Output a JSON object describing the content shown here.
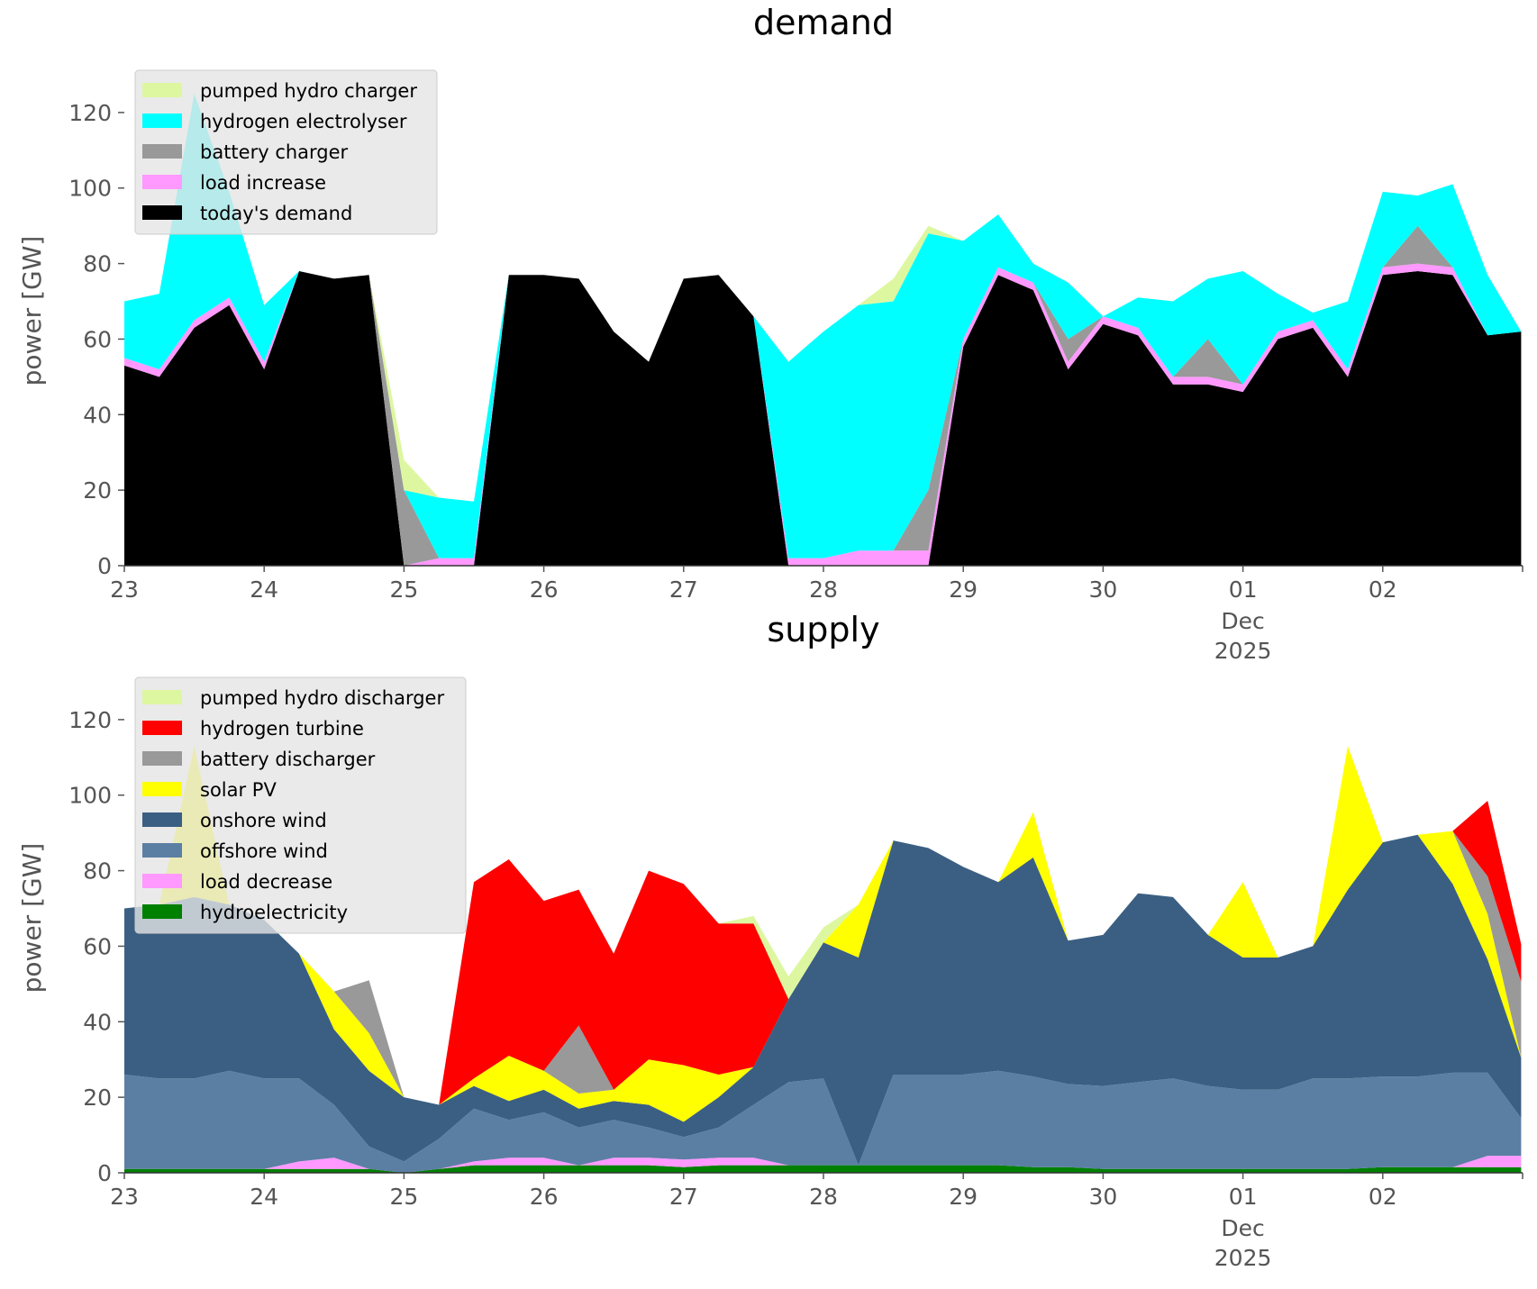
{
  "chart_data": [
    {
      "type": "area",
      "title": "demand",
      "xlabel": "",
      "ylabel": "power [GW]",
      "ylim": [
        0,
        135
      ],
      "yticks": [
        0,
        20,
        40,
        60,
        80,
        100,
        120
      ],
      "xlim": [
        0,
        10
      ],
      "xtick_labels": [
        "23",
        "24",
        "25",
        "26",
        "27",
        "28",
        "29",
        "30",
        "01",
        "02"
      ],
      "xtick_sublabels": {
        "01": [
          "Dec",
          "2025"
        ]
      },
      "legend_position": "top-left",
      "x": [
        0,
        0.25,
        0.5,
        0.75,
        1,
        1.25,
        1.5,
        1.75,
        2,
        2.25,
        2.5,
        2.75,
        3,
        3.25,
        3.5,
        3.75,
        4,
        4.25,
        4.5,
        4.75,
        5,
        5.25,
        5.5,
        5.75,
        6,
        6.25,
        6.5,
        6.75,
        7,
        7.25,
        7.5,
        7.75,
        8,
        8.25,
        8.5,
        8.75,
        9,
        9.25,
        9.5,
        9.75,
        9.99
      ],
      "series": [
        {
          "name": "today's demand",
          "color": "#000000",
          "values": [
            53,
            50,
            63,
            69,
            52,
            78,
            76,
            77,
            0,
            0,
            0,
            77,
            77,
            76,
            62,
            54,
            76,
            77,
            66,
            0,
            0,
            0,
            0,
            0,
            58,
            77,
            73,
            52,
            64,
            61,
            48,
            48,
            46,
            60,
            63,
            50,
            77,
            78,
            77,
            61,
            62
          ]
        },
        {
          "name": "load increase",
          "color": "#ff99ff",
          "values": [
            2,
            2,
            2,
            2,
            2,
            0,
            0,
            0,
            0,
            2,
            2,
            0,
            0,
            0,
            0,
            0,
            0,
            0,
            0,
            2,
            2,
            4,
            4,
            4,
            2,
            2,
            2,
            2,
            2,
            2,
            2,
            2,
            2,
            2,
            2,
            2,
            2,
            2,
            2,
            0,
            0
          ]
        },
        {
          "name": "battery charger",
          "color": "#999999",
          "values": [
            0,
            0,
            0,
            0,
            0,
            0,
            0,
            0,
            20,
            0,
            0,
            0,
            0,
            0,
            0,
            0,
            0,
            0,
            0,
            0,
            0,
            0,
            0,
            16,
            0,
            0,
            0,
            6,
            0,
            0,
            0,
            10,
            0,
            0,
            0,
            0,
            0,
            10,
            0,
            0,
            0
          ]
        },
        {
          "name": "hydrogen electrolyser",
          "color": "#00ffff",
          "values": [
            15,
            20,
            60,
            28,
            15,
            0,
            0,
            0,
            0,
            16,
            15,
            0,
            0,
            0,
            0,
            0,
            0,
            0,
            0,
            52,
            60,
            65,
            66,
            68,
            26,
            14,
            5,
            15,
            0,
            8,
            20,
            16,
            30,
            10,
            2,
            18,
            20,
            8,
            22,
            16,
            0
          ]
        },
        {
          "name": "pumped hydro charger",
          "color": "#ddf7a0",
          "values": [
            0,
            0,
            0,
            0,
            0,
            0,
            0,
            0,
            8,
            0,
            0,
            0,
            0,
            0,
            0,
            0,
            0,
            0,
            0,
            0,
            0,
            0,
            6,
            2,
            0,
            0,
            0,
            0,
            0,
            0,
            0,
            0,
            0,
            0,
            0,
            0,
            0,
            0,
            0,
            0,
            0
          ]
        }
      ]
    },
    {
      "type": "area",
      "title": "supply",
      "xlabel": "",
      "ylabel": "power [GW]",
      "ylim": [
        0,
        135
      ],
      "yticks": [
        0,
        20,
        40,
        60,
        80,
        100,
        120
      ],
      "xlim": [
        0,
        10
      ],
      "xtick_labels": [
        "23",
        "24",
        "25",
        "26",
        "27",
        "28",
        "29",
        "30",
        "01",
        "02"
      ],
      "xtick_sublabels": {
        "01": [
          "Dec",
          "2025"
        ]
      },
      "legend_position": "top-left",
      "x": [
        0,
        0.25,
        0.5,
        0.75,
        1,
        1.25,
        1.5,
        1.75,
        2,
        2.25,
        2.5,
        2.75,
        3,
        3.25,
        3.5,
        3.75,
        4,
        4.25,
        4.5,
        4.75,
        5,
        5.25,
        5.5,
        5.75,
        6,
        6.25,
        6.5,
        6.75,
        7,
        7.25,
        7.5,
        7.75,
        8,
        8.25,
        8.5,
        8.75,
        9,
        9.25,
        9.5,
        9.75,
        9.99
      ],
      "series": [
        {
          "name": "hydroelectricity",
          "color": "#008000",
          "values": [
            1,
            1,
            1,
            1,
            1,
            1,
            1,
            1,
            0,
            1,
            2,
            2,
            2,
            2,
            2,
            2,
            1.5,
            2,
            2,
            2,
            2,
            2,
            2,
            2,
            2,
            2,
            1.5,
            1.5,
            1,
            1,
            1,
            1,
            1,
            1,
            1,
            1,
            1.5,
            1.5,
            1.5,
            1.5,
            1.5
          ]
        },
        {
          "name": "load decrease",
          "color": "#ff99ff",
          "values": [
            0,
            0,
            0,
            0,
            0,
            2,
            3,
            0,
            0,
            0,
            1,
            2,
            2,
            0,
            2,
            2,
            2,
            2,
            2,
            0,
            0,
            0,
            0,
            0,
            0,
            0,
            0,
            0,
            0,
            0,
            0,
            0,
            0,
            0,
            0,
            0,
            0,
            0,
            0,
            3,
            3
          ]
        },
        {
          "name": "offshore wind",
          "color": "#5b7fa3",
          "values": [
            25,
            24,
            24,
            26,
            24,
            22,
            14,
            6,
            3,
            8,
            14,
            10,
            12,
            10,
            10,
            8,
            6,
            8,
            14,
            22,
            23,
            0,
            24,
            24,
            24,
            25,
            24,
            22,
            22,
            23,
            24,
            22,
            21,
            21,
            24,
            24,
            24,
            24,
            25,
            22,
            10
          ]
        },
        {
          "name": "onshore wind",
          "color": "#3b5f82",
          "values": [
            44,
            46,
            48,
            44,
            42,
            33,
            20,
            20,
            17,
            9,
            6,
            5,
            6,
            5,
            5,
            6,
            4,
            8,
            10,
            22,
            36,
            55,
            62,
            60,
            55,
            50,
            58,
            38,
            40,
            50,
            48,
            40,
            35,
            35,
            35,
            50,
            62,
            64,
            50,
            30,
            16
          ]
        },
        {
          "name": "solar PV",
          "color": "#ffff00",
          "values": [
            0,
            0,
            40,
            0,
            0,
            0,
            10,
            10,
            0,
            0,
            2,
            12,
            5,
            4,
            3,
            12,
            15,
            6,
            0,
            0,
            0,
            14,
            0,
            0,
            0,
            0,
            12,
            0,
            0,
            0,
            0,
            0,
            20,
            0,
            0,
            38,
            0,
            0,
            14,
            12,
            0
          ]
        },
        {
          "name": "battery discharger",
          "color": "#999999",
          "values": [
            0,
            0,
            0,
            0,
            0,
            0,
            0,
            14,
            0,
            0,
            0,
            0,
            0,
            18,
            0,
            0,
            0,
            0,
            0,
            0,
            0,
            0,
            0,
            0,
            0,
            0,
            0,
            0,
            0,
            0,
            0,
            0,
            0,
            0,
            0,
            0,
            0,
            0,
            0,
            10,
            20
          ]
        },
        {
          "name": "hydrogen turbine",
          "color": "#ff0000",
          "values": [
            0,
            0,
            0,
            0,
            0,
            0,
            0,
            0,
            0,
            0,
            52,
            52,
            45,
            36,
            36,
            50,
            48,
            40,
            38,
            0,
            0,
            0,
            0,
            0,
            0,
            0,
            0,
            0,
            0,
            0,
            0,
            0,
            0,
            0,
            0,
            0,
            0,
            0,
            0,
            20,
            10
          ]
        },
        {
          "name": "pumped hydro discharger",
          "color": "#ddf7a0",
          "values": [
            0,
            0,
            0,
            0,
            0,
            0,
            0,
            0,
            0,
            0,
            0,
            0,
            0,
            0,
            0,
            0,
            0,
            0,
            2,
            6,
            4,
            0,
            0,
            0,
            0,
            0,
            0,
            0,
            0,
            0,
            0,
            0,
            0,
            0,
            0,
            0,
            0,
            0,
            0,
            0,
            0
          ]
        }
      ]
    }
  ],
  "legends": [
    [
      "pumped hydro charger",
      "hydrogen electrolyser",
      "battery charger",
      "load increase",
      "today's demand"
    ],
    [
      "pumped hydro discharger",
      "hydrogen turbine",
      "battery discharger",
      "solar PV",
      "onshore wind",
      "offshore wind",
      "load decrease",
      "hydroelectricity"
    ]
  ]
}
